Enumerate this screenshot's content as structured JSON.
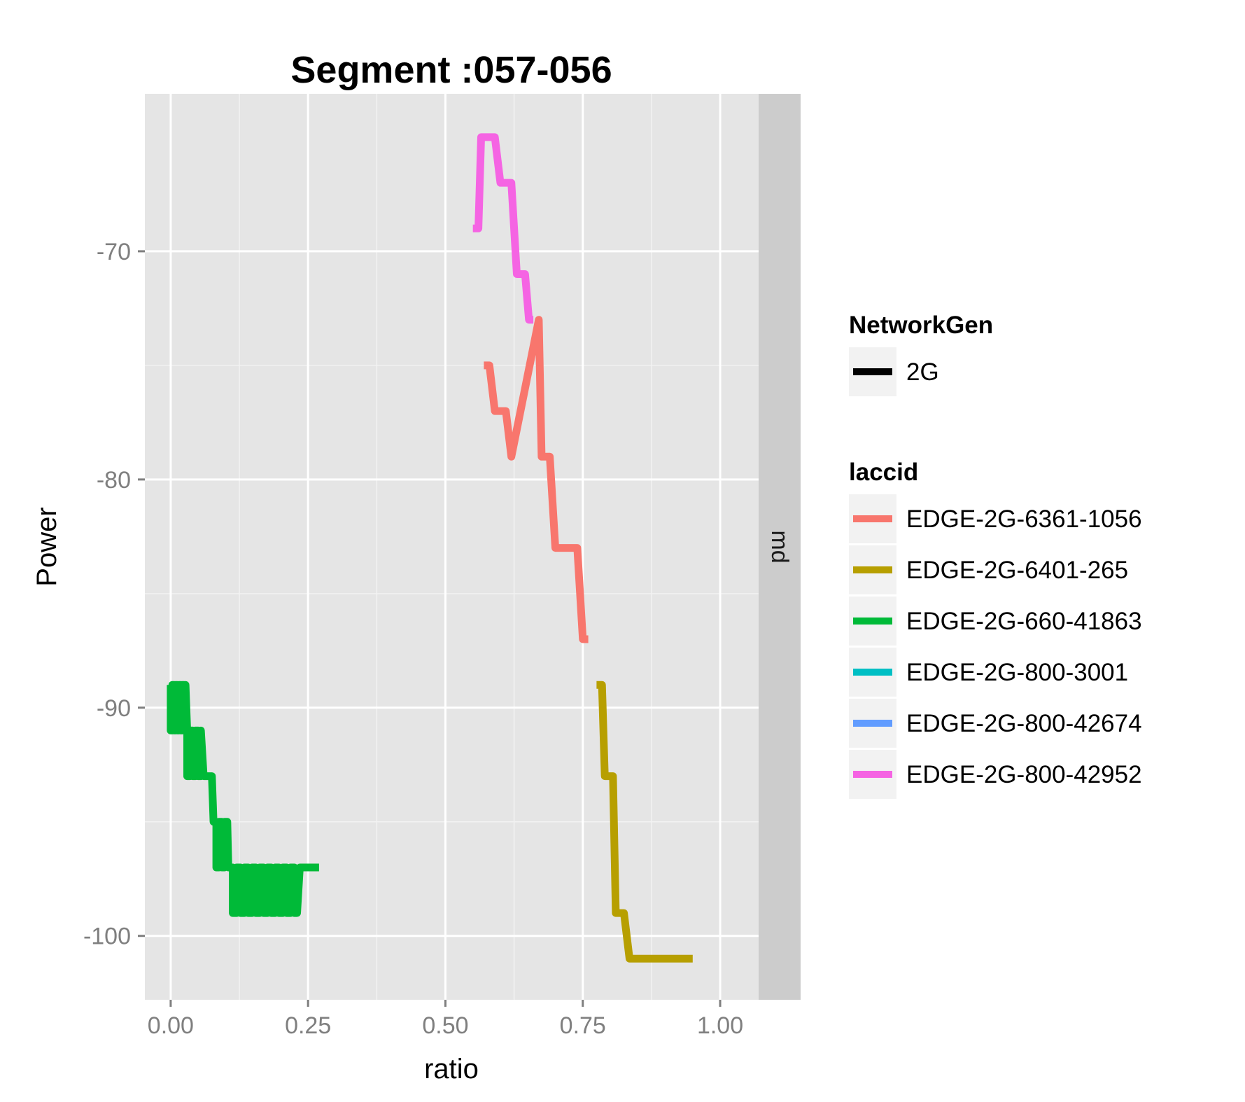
{
  "chart_data": {
    "type": "line",
    "title": "Segment :057-056",
    "xlabel": "ratio",
    "ylabel": "Power",
    "xlim": [
      -0.047,
      1.07
    ],
    "ylim": [
      -102.8,
      -63.1
    ],
    "x_ticks": [
      "0.00",
      "0.25",
      "0.50",
      "0.75",
      "1.00"
    ],
    "x_tick_values": [
      0,
      0.25,
      0.5,
      0.75,
      1.0
    ],
    "y_ticks": [
      "-70",
      "-80",
      "-90",
      "-100"
    ],
    "y_tick_values": [
      -70,
      -80,
      -90,
      -100
    ],
    "grid": true,
    "facet_label": "md",
    "legend": {
      "placement": "right",
      "groups": [
        {
          "title": "NetworkGen",
          "entries": [
            {
              "label": "2G",
              "color": "#000000"
            }
          ]
        },
        {
          "title": "laccid",
          "entries": [
            {
              "label": "EDGE-2G-6361-1056",
              "color": "#F8766D"
            },
            {
              "label": "EDGE-2G-6401-265",
              "color": "#B79F00"
            },
            {
              "label": "EDGE-2G-660-41863",
              "color": "#00BA38"
            },
            {
              "label": "EDGE-2G-800-3001",
              "color": "#00BFC4"
            },
            {
              "label": "EDGE-2G-800-42674",
              "color": "#619CFF"
            },
            {
              "label": "EDGE-2G-800-42952",
              "color": "#F564E3"
            }
          ]
        }
      ]
    },
    "series": [
      {
        "name": "EDGE-2G-800-42952",
        "color": "#F564E3",
        "points": [
          [
            0.55,
            -69
          ],
          [
            0.56,
            -69
          ],
          [
            0.565,
            -65
          ],
          [
            0.57,
            -65
          ],
          [
            0.59,
            -65
          ],
          [
            0.6,
            -67
          ],
          [
            0.62,
            -67
          ],
          [
            0.63,
            -71
          ],
          [
            0.645,
            -71
          ],
          [
            0.652,
            -73
          ],
          [
            0.66,
            -73
          ]
        ]
      },
      {
        "name": "EDGE-2G-6361-1056",
        "color": "#F8766D",
        "points": [
          [
            0.57,
            -75
          ],
          [
            0.58,
            -75
          ],
          [
            0.59,
            -77
          ],
          [
            0.61,
            -77
          ],
          [
            0.62,
            -79
          ],
          [
            0.67,
            -73
          ],
          [
            0.675,
            -79
          ],
          [
            0.69,
            -79
          ],
          [
            0.7,
            -83
          ],
          [
            0.74,
            -83
          ],
          [
            0.75,
            -87
          ],
          [
            0.76,
            -87
          ]
        ]
      },
      {
        "name": "EDGE-2G-6401-265",
        "color": "#B79F00",
        "points": [
          [
            0.775,
            -89
          ],
          [
            0.785,
            -89
          ],
          [
            0.79,
            -93
          ],
          [
            0.805,
            -93
          ],
          [
            0.81,
            -99
          ],
          [
            0.825,
            -99
          ],
          [
            0.835,
            -101
          ],
          [
            0.95,
            -101
          ]
        ]
      },
      {
        "name": "EDGE-2G-660-41863",
        "color": "#00BA38",
        "points": [
          [
            0,
            -89
          ],
          [
            0,
            -91
          ],
          [
            0.003,
            -91
          ],
          [
            0.003,
            -89
          ],
          [
            0.006,
            -89
          ],
          [
            0.006,
            -91
          ],
          [
            0.009,
            -91
          ],
          [
            0.009,
            -89
          ],
          [
            0.012,
            -89
          ],
          [
            0.012,
            -91
          ],
          [
            0.015,
            -91
          ],
          [
            0.015,
            -89
          ],
          [
            0.018,
            -89
          ],
          [
            0.018,
            -91
          ],
          [
            0.021,
            -91
          ],
          [
            0.021,
            -89
          ],
          [
            0.024,
            -89
          ],
          [
            0.024,
            -91
          ],
          [
            0.027,
            -91
          ],
          [
            0.027,
            -89
          ],
          [
            0.03,
            -91
          ],
          [
            0.03,
            -93
          ],
          [
            0.035,
            -93
          ],
          [
            0.035,
            -91
          ],
          [
            0.04,
            -91
          ],
          [
            0.04,
            -93
          ],
          [
            0.045,
            -93
          ],
          [
            0.045,
            -91
          ],
          [
            0.05,
            -91
          ],
          [
            0.05,
            -93
          ],
          [
            0.055,
            -93
          ],
          [
            0.055,
            -91
          ],
          [
            0.06,
            -93
          ],
          [
            0.075,
            -93
          ],
          [
            0.078,
            -95
          ],
          [
            0.083,
            -95
          ],
          [
            0.083,
            -97
          ],
          [
            0.088,
            -97
          ],
          [
            0.088,
            -95
          ],
          [
            0.093,
            -95
          ],
          [
            0.093,
            -97
          ],
          [
            0.098,
            -97
          ],
          [
            0.098,
            -95
          ],
          [
            0.103,
            -95
          ],
          [
            0.105,
            -97
          ],
          [
            0.113,
            -97
          ],
          [
            0.113,
            -99
          ],
          [
            0.12,
            -99
          ],
          [
            0.12,
            -97
          ],
          [
            0.127,
            -97
          ],
          [
            0.127,
            -99
          ],
          [
            0.134,
            -99
          ],
          [
            0.134,
            -97
          ],
          [
            0.141,
            -97
          ],
          [
            0.141,
            -99
          ],
          [
            0.148,
            -99
          ],
          [
            0.148,
            -97
          ],
          [
            0.155,
            -97
          ],
          [
            0.155,
            -99
          ],
          [
            0.162,
            -99
          ],
          [
            0.162,
            -97
          ],
          [
            0.169,
            -97
          ],
          [
            0.169,
            -99
          ],
          [
            0.176,
            -99
          ],
          [
            0.176,
            -97
          ],
          [
            0.183,
            -97
          ],
          [
            0.183,
            -99
          ],
          [
            0.19,
            -99
          ],
          [
            0.19,
            -97
          ],
          [
            0.197,
            -97
          ],
          [
            0.197,
            -99
          ],
          [
            0.204,
            -99
          ],
          [
            0.204,
            -97
          ],
          [
            0.211,
            -97
          ],
          [
            0.211,
            -99
          ],
          [
            0.218,
            -99
          ],
          [
            0.218,
            -97
          ],
          [
            0.225,
            -97
          ],
          [
            0.225,
            -99
          ],
          [
            0.23,
            -99
          ],
          [
            0.235,
            -97
          ],
          [
            0.27,
            -97
          ]
        ]
      }
    ]
  }
}
